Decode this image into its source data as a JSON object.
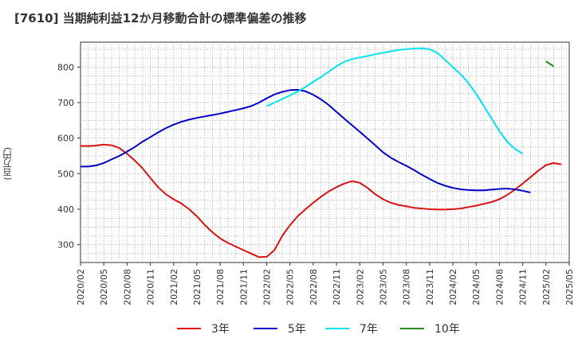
{
  "chart_data": {
    "type": "line",
    "title": "[7610]  当期純利益12か月移動合計の標準偏差の推移",
    "ylabel": "(百万円)",
    "xlabel": "",
    "ylim": [
      250,
      870
    ],
    "yticks": [
      300,
      400,
      500,
      600,
      700,
      800
    ],
    "x_tick_labels": [
      "2020/02",
      "2020/05",
      "2020/08",
      "2020/11",
      "2021/02",
      "2021/05",
      "2021/08",
      "2021/11",
      "2022/02",
      "2022/05",
      "2022/08",
      "2022/11",
      "2023/02",
      "2023/05",
      "2023/08",
      "2023/11",
      "2024/02",
      "2024/05",
      "2024/08",
      "2024/11",
      "2025/02",
      "2025/05"
    ],
    "grid": true,
    "legend_position": "bottom",
    "series": [
      {
        "name": "3年",
        "color": "#dd1111",
        "start_index": 0,
        "values": [
          578,
          578,
          579,
          582,
          580,
          572,
          556,
          537,
          515,
          488,
          462,
          442,
          428,
          416,
          400,
          380,
          356,
          335,
          318,
          305,
          295,
          285,
          275,
          265,
          266,
          285,
          325,
          355,
          380,
          400,
          418,
          435,
          450,
          462,
          472,
          479,
          474,
          460,
          442,
          428,
          418,
          412,
          408,
          404,
          402,
          400,
          399,
          399,
          400,
          402,
          406,
          410,
          415,
          420,
          428,
          440,
          455,
          472,
          490,
          508,
          524,
          530,
          526
        ]
      },
      {
        "name": "5年",
        "color": "#0000cc",
        "start_index": 0,
        "values": [
          520,
          520,
          523,
          530,
          540,
          550,
          562,
          575,
          590,
          603,
          616,
          628,
          638,
          646,
          652,
          657,
          661,
          665,
          669,
          674,
          679,
          684,
          690,
          700,
          712,
          723,
          730,
          735,
          736,
          732,
          722,
          709,
          693,
          674,
          655,
          636,
          618,
          599,
          580,
          560,
          545,
          533,
          522,
          510,
          497,
          485,
          474,
          466,
          460,
          456,
          454,
          453,
          453,
          455,
          457,
          458,
          456,
          452,
          447
        ]
      },
      {
        "name": "7年",
        "color": "#00e5ee",
        "start_index": 24,
        "values": [
          690,
          700,
          710,
          720,
          731,
          744,
          758,
          772,
          787,
          802,
          815,
          822,
          827,
          831,
          836,
          840,
          844,
          848,
          850,
          852,
          853,
          850,
          840,
          820,
          800,
          780,
          755,
          725,
          690,
          655,
          620,
          590,
          570,
          556
        ]
      },
      {
        "name": "10年",
        "color": "#228b22",
        "start_index": 60,
        "values": [
          816,
          802
        ]
      }
    ]
  }
}
